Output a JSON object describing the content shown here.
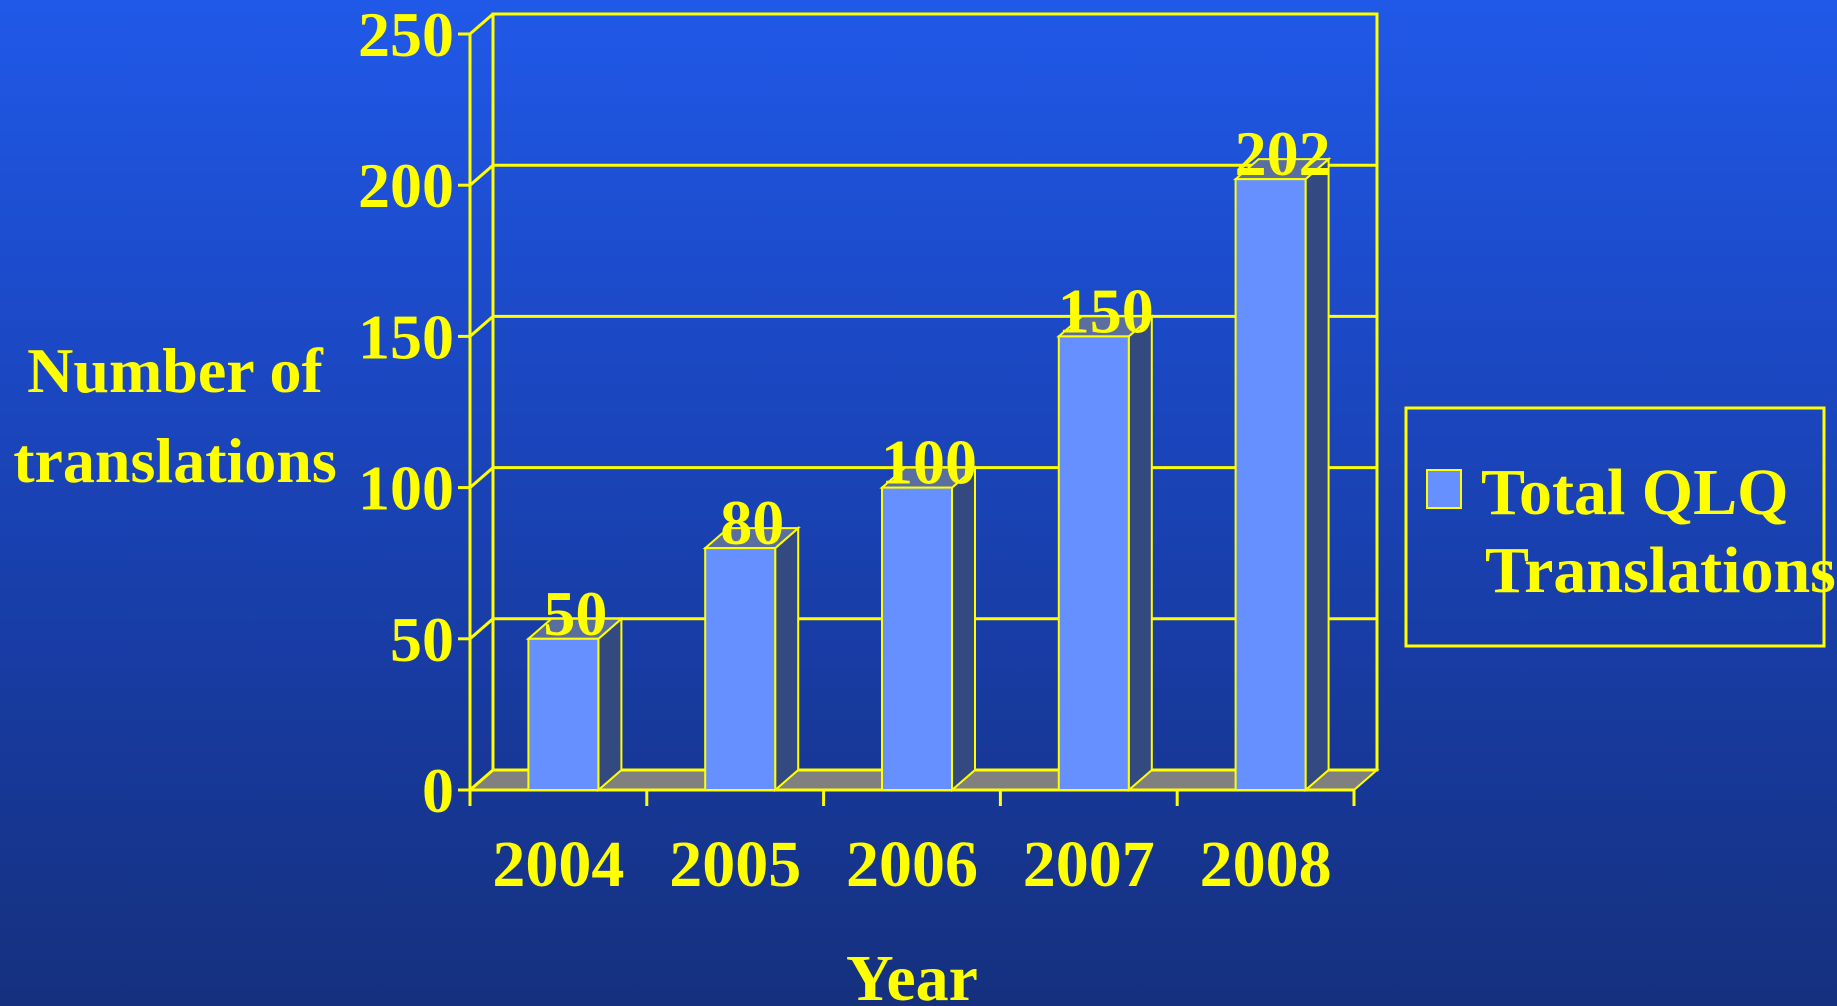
{
  "chart_data": {
    "type": "bar",
    "categories": [
      "2004",
      "2005",
      "2006",
      "2007",
      "2008"
    ],
    "series": [
      {
        "name": "Total QLQ Translations",
        "values": [
          50,
          80,
          100,
          150,
          202
        ]
      }
    ],
    "data_labels": [
      "50",
      "80",
      "100",
      "150",
      "202"
    ],
    "xlabel": "Year",
    "ylabel_lines": [
      "Number of",
      "translations"
    ],
    "legend_lines": [
      "Total QLQ",
      "Translations"
    ],
    "yticks": [
      0,
      50,
      100,
      150,
      200,
      250
    ],
    "ylim": [
      0,
      250
    ],
    "grid": true,
    "legend_position": "right",
    "three_d": true,
    "colors": {
      "bar_front": "#6690ff",
      "bar_side": "#334a80",
      "bar_top": "#5a6fa0",
      "floor": "#808080",
      "axis": "#ffff00",
      "text": "#ffff00",
      "background_top": "#2059e8",
      "background_bottom": "#15307e"
    }
  }
}
